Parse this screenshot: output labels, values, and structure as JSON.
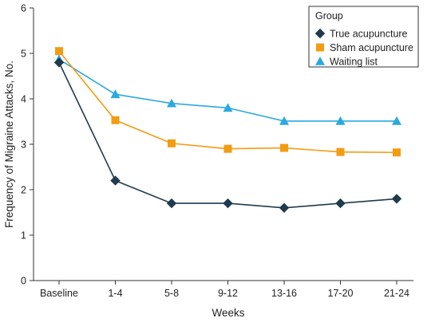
{
  "chart_data": {
    "type": "line",
    "categories": [
      "Baseline",
      "1-4",
      "5-8",
      "9-12",
      "13-16",
      "17-20",
      "21-24"
    ],
    "xlabel": "Weeks",
    "ylabel": "Frequency of Migraine Attacks, No.",
    "ylim": [
      0,
      6
    ],
    "yticks": [
      0,
      1,
      2,
      3,
      4,
      5,
      6
    ],
    "grid": false,
    "legend": {
      "title": "Group",
      "placement": "top-right"
    },
    "series": [
      {
        "name": "True acupuncture",
        "marker": "diamond",
        "color": "#1f3b4d",
        "values": [
          4.8,
          2.2,
          1.7,
          1.7,
          1.6,
          1.7,
          1.8
        ]
      },
      {
        "name": "Sham acupuncture",
        "marker": "square",
        "color": "#f39c12",
        "values": [
          5.05,
          3.53,
          3.02,
          2.9,
          2.92,
          2.83,
          2.82
        ]
      },
      {
        "name": "Waiting list",
        "marker": "triangle",
        "color": "#2aa9df",
        "values": [
          4.87,
          4.1,
          3.9,
          3.8,
          3.51,
          3.51,
          3.51
        ]
      }
    ]
  }
}
